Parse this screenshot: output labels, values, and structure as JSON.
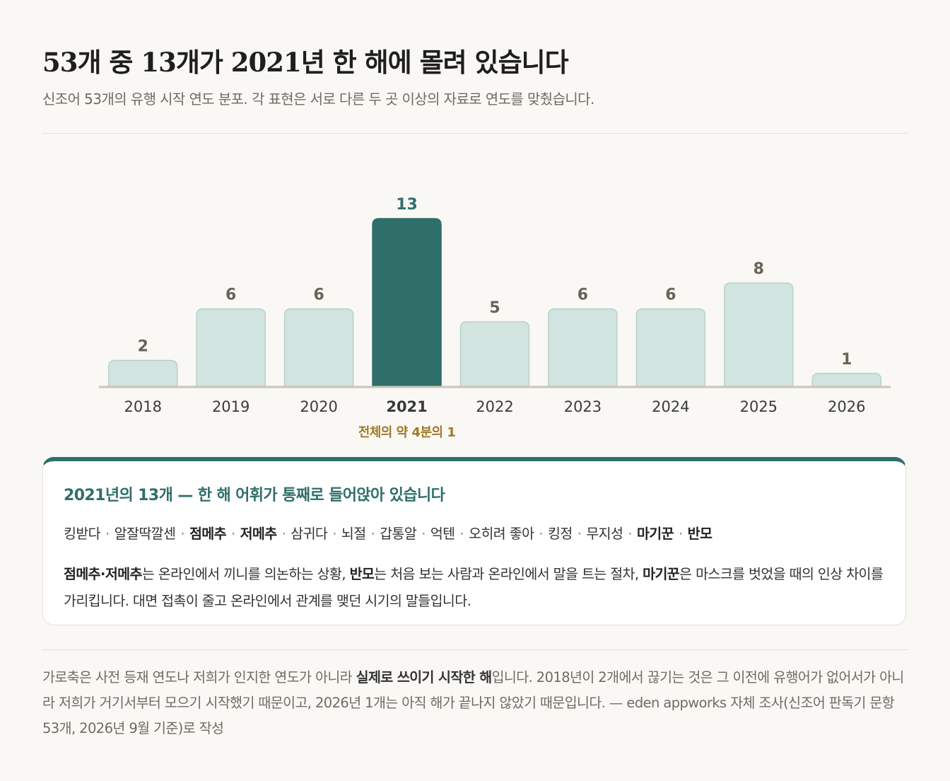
{
  "header": {
    "title": "53개 중 13개가 2021년 한 해에 몰려 있습니다",
    "subtitle": "신조어 53개의 유행 시작 연도 분포. 각 표현은 서로 다른 두 곳 이상의 자료로 연도를 맞췄습니다."
  },
  "chart_data": {
    "type": "bar",
    "title": "53개 중 13개가 2021년 한 해에 몰려 있습니다",
    "subtitle": "신조어 53개의 유행 시작 연도 분포. 각 표현은 서로 다른 두 곳 이상의 자료로 연도를 맞췄습니다.",
    "categories": [
      "2018",
      "2019",
      "2020",
      "2021",
      "2022",
      "2023",
      "2024",
      "2025",
      "2026"
    ],
    "values": [
      2,
      6,
      6,
      13,
      5,
      6,
      6,
      8,
      1
    ],
    "highlight": "2021",
    "highlight_annotation": "전체의 약 4분의 1",
    "ylim": [
      0,
      13
    ],
    "grid": false,
    "data_labels": true,
    "colors": {
      "bar": "#d2e4e0",
      "bar_stroke": "#b5d2cc",
      "highlight": "#2f6f6a",
      "baseline": "#cbc5b8",
      "value_label": "#6b6258",
      "category_label": "#3a3a3a",
      "highlight_label": "#2f6f6a",
      "annotation": "#a0782a"
    }
  },
  "note": {
    "title": "2021년의 13개 — 한 해 어휘가 통째로 들어앉아 있습니다",
    "words": [
      {
        "text": "킹받다",
        "bold": false
      },
      {
        "text": "알잘딱깔센",
        "bold": false
      },
      {
        "text": "점메추",
        "bold": true
      },
      {
        "text": "저메추",
        "bold": true
      },
      {
        "text": "삼귀다",
        "bold": false
      },
      {
        "text": "뇌절",
        "bold": false
      },
      {
        "text": "갑통알",
        "bold": false
      },
      {
        "text": "억텐",
        "bold": false
      },
      {
        "text": "오히려 좋아",
        "bold": false
      },
      {
        "text": "킹정",
        "bold": false
      },
      {
        "text": "무지성",
        "bold": false
      },
      {
        "text": "마기꾼",
        "bold": true
      },
      {
        "text": "반모",
        "bold": true
      }
    ],
    "separator": "·",
    "body": {
      "b1": "점메추·저메추",
      "t1": "는 온라인에서 끼니를 의논하는 상황, ",
      "b2": "반모",
      "t2": "는 처음 보는 사람과 온라인에서 말을 트는 절차, ",
      "b3": "마기꾼",
      "t3": "은 마스크를 벗었을 때의 인상 차이를 가리킵니다. 대면 접촉이 줄고 온라인에서 관계를 맺던 시기의 말들입니다."
    }
  },
  "footer": {
    "t1": "가로축은 사전 등재 연도나 저희가 인지한 연도가 아니라 ",
    "b1": "실제로 쓰이기 시작한 해",
    "t2": "입니다. 2018년이 2개에서 끊기는 것은 그 이전에 유행어가 없어서가 아니라 저희가 거기서부터 모으기 시작했기 때문이고, 2026년 1개는 아직 해가 끝나지 않았기 때문입니다. — eden appworks 자체 조사(신조어 판독기 문항 53개, 2026년 9월 기준)로 작성"
  }
}
